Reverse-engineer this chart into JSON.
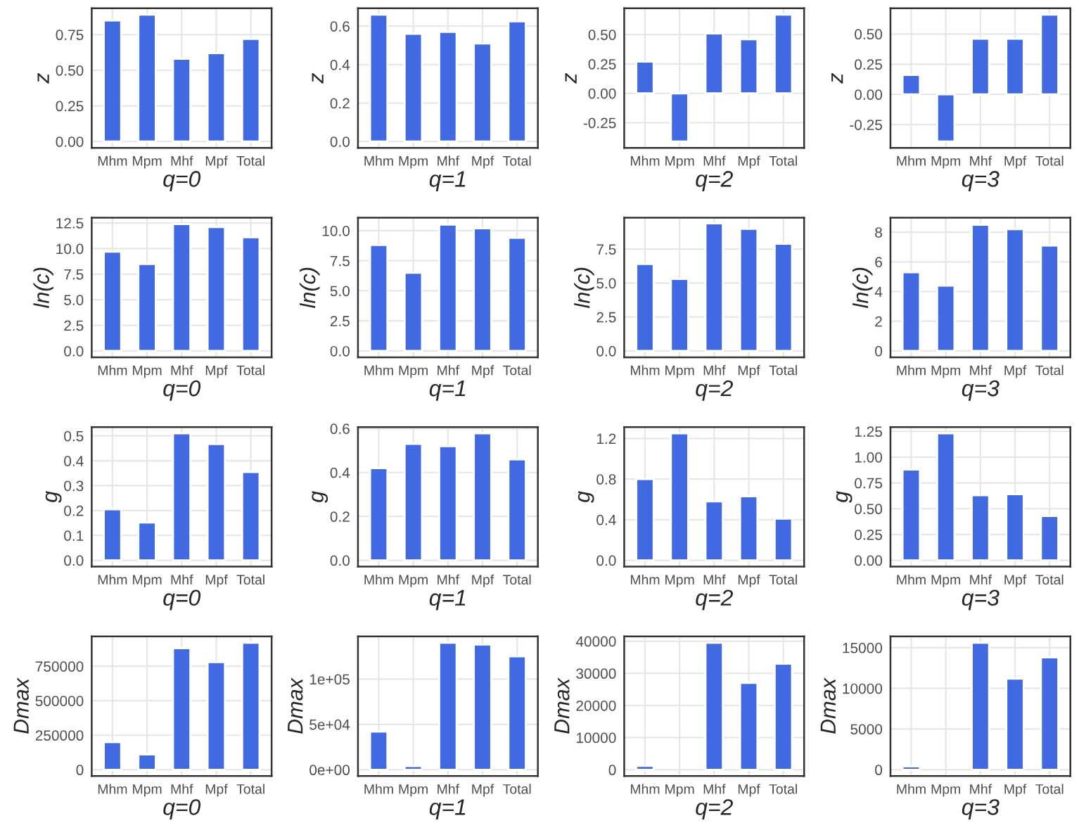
{
  "chart_data": [
    {
      "type": "bar",
      "categories": [
        "Mhm",
        "Mpm",
        "Mhf",
        "Mpf",
        "Total"
      ],
      "values": [
        0.85,
        0.89,
        0.58,
        0.62,
        0.72
      ],
      "color": "#4169e1",
      "xlabel": "q=0",
      "ylabel": "z",
      "ylim": [
        -0.045,
        0.935
      ],
      "yticks": [
        {
          "value": 0,
          "label": "0.00"
        },
        {
          "value": 0.25,
          "label": "0.25"
        },
        {
          "value": 0.5,
          "label": "0.50"
        },
        {
          "value": 0.75,
          "label": "0.75"
        }
      ],
      "grid": true
    },
    {
      "type": "bar",
      "categories": [
        "Mhm",
        "Mpm",
        "Mhf",
        "Mpf",
        "Total"
      ],
      "values": [
        0.66,
        0.56,
        0.57,
        0.51,
        0.625
      ],
      "color": "#4169e1",
      "xlabel": "q=1",
      "ylabel": "z",
      "ylim": [
        -0.033,
        0.693
      ],
      "yticks": [
        {
          "value": 0,
          "label": "0.0"
        },
        {
          "value": 0.2,
          "label": "0.2"
        },
        {
          "value": 0.4,
          "label": "0.4"
        },
        {
          "value": 0.6,
          "label": "0.6"
        }
      ],
      "grid": true
    },
    {
      "type": "bar",
      "categories": [
        "Mhm",
        "Mpm",
        "Mhf",
        "Mpf",
        "Total"
      ],
      "values": [
        0.27,
        -0.41,
        0.51,
        0.46,
        0.67
      ],
      "color": "#4169e1",
      "xlabel": "q=2",
      "ylabel": "z",
      "ylim": [
        -0.464,
        0.724
      ],
      "yticks": [
        {
          "value": -0.25,
          "label": "-0.25"
        },
        {
          "value": 0,
          "label": "0.00"
        },
        {
          "value": 0.25,
          "label": "0.25"
        },
        {
          "value": 0.5,
          "label": "0.50"
        }
      ],
      "grid": true
    },
    {
      "type": "bar",
      "categories": [
        "Mhm",
        "Mpm",
        "Mhf",
        "Mpf",
        "Total"
      ],
      "values": [
        0.16,
        -0.39,
        0.46,
        0.46,
        0.66
      ],
      "color": "#4169e1",
      "xlabel": "q=3",
      "ylabel": "z",
      "ylim": [
        -0.4425,
        0.7125
      ],
      "yticks": [
        {
          "value": -0.25,
          "label": "-0.25"
        },
        {
          "value": 0,
          "label": "0.00"
        },
        {
          "value": 0.25,
          "label": "0.25"
        },
        {
          "value": 0.5,
          "label": "0.50"
        }
      ],
      "grid": true
    },
    {
      "type": "bar",
      "categories": [
        "Mhm",
        "Mpm",
        "Mhf",
        "Mpf",
        "Total"
      ],
      "values": [
        9.7,
        8.5,
        12.4,
        12.1,
        11.1
      ],
      "color": "#4169e1",
      "xlabel": "q=0",
      "ylabel": "ln(c)",
      "ylim": [
        -0.62,
        13.02
      ],
      "yticks": [
        {
          "value": 0,
          "label": "0.0"
        },
        {
          "value": 2.5,
          "label": "2.5"
        },
        {
          "value": 5,
          "label": "5.0"
        },
        {
          "value": 7.5,
          "label": "7.5"
        },
        {
          "value": 10,
          "label": "10.0"
        },
        {
          "value": 12.5,
          "label": "12.5"
        }
      ],
      "grid": true
    },
    {
      "type": "bar",
      "categories": [
        "Mhm",
        "Mpm",
        "Mhf",
        "Mpf",
        "Total"
      ],
      "values": [
        8.8,
        6.5,
        10.5,
        10.2,
        9.4
      ],
      "color": "#4169e1",
      "xlabel": "q=1",
      "ylabel": "ln(c)",
      "ylim": [
        -0.53,
        11.08
      ],
      "yticks": [
        {
          "value": 0,
          "label": "0.0"
        },
        {
          "value": 2.5,
          "label": "2.5"
        },
        {
          "value": 5,
          "label": "5.0"
        },
        {
          "value": 7.5,
          "label": "7.5"
        },
        {
          "value": 10,
          "label": "10.0"
        }
      ],
      "grid": true
    },
    {
      "type": "bar",
      "categories": [
        "Mhm",
        "Mpm",
        "Mhf",
        "Mpf",
        "Total"
      ],
      "values": [
        6.4,
        5.3,
        9.4,
        9.0,
        7.9
      ],
      "color": "#4169e1",
      "xlabel": "q=2",
      "ylabel": "ln(c)",
      "ylim": [
        -0.47,
        9.82
      ],
      "yticks": [
        {
          "value": 0,
          "label": "0.0"
        },
        {
          "value": 2.5,
          "label": "2.5"
        },
        {
          "value": 5,
          "label": "5.0"
        },
        {
          "value": 7.5,
          "label": "7.5"
        }
      ],
      "grid": true
    },
    {
      "type": "bar",
      "categories": [
        "Mhm",
        "Mpm",
        "Mhf",
        "Mpf",
        "Total"
      ],
      "values": [
        5.3,
        4.4,
        8.5,
        8.2,
        7.1
      ],
      "color": "#4169e1",
      "xlabel": "q=3",
      "ylabel": "ln(c)",
      "ylim": [
        -0.43,
        8.98
      ],
      "yticks": [
        0,
        2,
        4,
        6,
        8
      ],
      "grid": true
    },
    {
      "type": "bar",
      "categories": [
        "Mhm",
        "Mpm",
        "Mhf",
        "Mpf",
        "Total"
      ],
      "values": [
        0.205,
        0.152,
        0.51,
        0.467,
        0.355
      ],
      "color": "#4169e1",
      "xlabel": "q=0",
      "ylabel": "g",
      "ylim": [
        -0.0255,
        0.5355
      ],
      "yticks": [
        {
          "value": 0,
          "label": "0.0"
        },
        0.1,
        0.2,
        0.3,
        0.4,
        0.5
      ],
      "grid": true
    },
    {
      "type": "bar",
      "categories": [
        "Mhm",
        "Mpm",
        "Mhf",
        "Mpf",
        "Total"
      ],
      "values": [
        0.42,
        0.53,
        0.52,
        0.578,
        0.46
      ],
      "color": "#4169e1",
      "xlabel": "q=1",
      "ylabel": "g",
      "ylim": [
        -0.029,
        0.607
      ],
      "yticks": [
        {
          "value": 0,
          "label": "0.0"
        },
        0.2,
        0.4,
        0.6
      ],
      "grid": true
    },
    {
      "type": "bar",
      "categories": [
        "Mhm",
        "Mpm",
        "Mhf",
        "Mpf",
        "Total"
      ],
      "values": [
        0.8,
        1.25,
        0.58,
        0.63,
        0.41
      ],
      "color": "#4169e1",
      "xlabel": "q=2",
      "ylabel": "g",
      "ylim": [
        -0.0625,
        1.3125
      ],
      "yticks": [
        {
          "value": 0,
          "label": "0.0"
        },
        0.4,
        0.8,
        1.2
      ],
      "grid": true
    },
    {
      "type": "bar",
      "categories": [
        "Mhm",
        "Mpm",
        "Mhf",
        "Mpf",
        "Total"
      ],
      "values": [
        0.88,
        1.23,
        0.63,
        0.64,
        0.43
      ],
      "color": "#4169e1",
      "xlabel": "q=3",
      "ylabel": "g",
      "ylim": [
        -0.0615,
        1.2915
      ],
      "yticks": [
        {
          "value": 0,
          "label": "0.00"
        },
        {
          "value": 0.25,
          "label": "0.25"
        },
        {
          "value": 0.5,
          "label": "0.50"
        },
        {
          "value": 0.75,
          "label": "0.75"
        },
        {
          "value": 1,
          "label": "1.00"
        },
        {
          "value": 1.25,
          "label": "1.25"
        }
      ],
      "grid": true
    },
    {
      "type": "bar",
      "categories": [
        "Mhm",
        "Mpm",
        "Mhf",
        "Mpf",
        "Total"
      ],
      "values": [
        200000,
        110000,
        880000,
        780000,
        920000
      ],
      "color": "#4169e1",
      "xlabel": "q=0",
      "ylabel": "Dmax",
      "ylim": [
        -46000,
        966000
      ],
      "yticks": [
        0,
        250000,
        500000,
        750000
      ],
      "grid": true
    },
    {
      "type": "bar",
      "categories": [
        "Mhm",
        "Mpm",
        "Mhf",
        "Mpf",
        "Total"
      ],
      "values": [
        42000,
        4000,
        140000,
        138000,
        125000
      ],
      "color": "#4169e1",
      "xlabel": "q=1",
      "ylabel": "Dmax",
      "ylim": [
        -7000,
        147000
      ],
      "yticks": [
        {
          "value": 0,
          "label": "0e+00"
        },
        {
          "value": 50000,
          "label": "5e+04"
        },
        {
          "value": 100000,
          "label": "1e+05"
        }
      ],
      "grid": true
    },
    {
      "type": "bar",
      "categories": [
        "Mhm",
        "Mpm",
        "Mhf",
        "Mpf",
        "Total"
      ],
      "values": [
        1200,
        null,
        39500,
        27000,
        33000
      ],
      "color": "#4169e1",
      "xlabel": "q=2",
      "ylabel": "Dmax",
      "ylim": [
        -1975,
        41475
      ],
      "yticks": [
        0,
        10000,
        20000,
        30000,
        40000
      ],
      "grid": true
    },
    {
      "type": "bar",
      "categories": [
        "Mhm",
        "Mpm",
        "Mhf",
        "Mpf",
        "Total"
      ],
      "values": [
        400,
        null,
        15600,
        11200,
        13800
      ],
      "color": "#4169e1",
      "xlabel": "q=3",
      "ylabel": "Dmax",
      "ylim": [
        -780,
        16380
      ],
      "yticks": [
        0,
        5000,
        10000,
        15000
      ],
      "grid": true
    }
  ]
}
